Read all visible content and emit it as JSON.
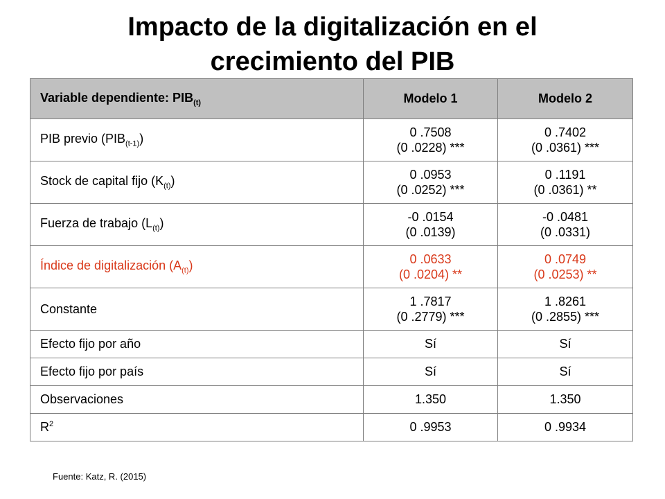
{
  "title_line1": "Impacto de la digitalización en el",
  "title_line2": "crecimiento del PIB",
  "header": {
    "var_label": "Variable dependiente: PIB",
    "var_sub": "(t)",
    "model1": "Modelo 1",
    "model2": "Modelo 2"
  },
  "rows": [
    {
      "pre": "PIB previo (PIB",
      "sub": "(t-1)",
      "post": ")",
      "m1_coef": "0 .7508",
      "m1_se": "(0 .0228) ***",
      "m2_coef": "0 .7402",
      "m2_se": "(0 .0361) ***"
    },
    {
      "pre": "Stock de capital fijo (K",
      "sub": "(t)",
      "post": ")",
      "m1_coef": "0 .0953",
      "m1_se": "(0 .0252) ***",
      "m2_coef": "0 .1191",
      "m2_se": "(0 .0361) **"
    },
    {
      "pre": "Fuerza de trabajo (L",
      "sub": "(t)",
      "post": ")",
      "m1_coef": "-0 .0154",
      "m1_se": "(0 .0139)",
      "m2_coef": "-0 .0481",
      "m2_se": "(0 .0331)"
    },
    {
      "pre": "Índice de digitalización (A",
      "sub": "(t)",
      "post": ")",
      "m1_coef": "0 .0633",
      "m1_se": "(0 .0204) **",
      "m2_coef": "0 .0749",
      "m2_se": "(0 .0253) **"
    },
    {
      "label": "Constante",
      "m1_coef": "1 .7817",
      "m1_se": "(0 .2779) ***",
      "m2_coef": "1 .8261",
      "m2_se": "(0 .2855) ***"
    }
  ],
  "simple_rows": [
    {
      "label": "Efecto fijo por año",
      "m1": "Sí",
      "m2": "Sí"
    },
    {
      "label": "Efecto fijo por país",
      "m1": "Sí",
      "m2": "Sí"
    },
    {
      "label": "Observaciones",
      "m1": "1.350",
      "m2": "1.350"
    }
  ],
  "r2": {
    "label": "R",
    "sup": "2",
    "m1": "0 .9953",
    "m2": "0 .9934"
  },
  "highlight_color": "#d9391a",
  "source": "Fuente: Katz, R. (2015)"
}
